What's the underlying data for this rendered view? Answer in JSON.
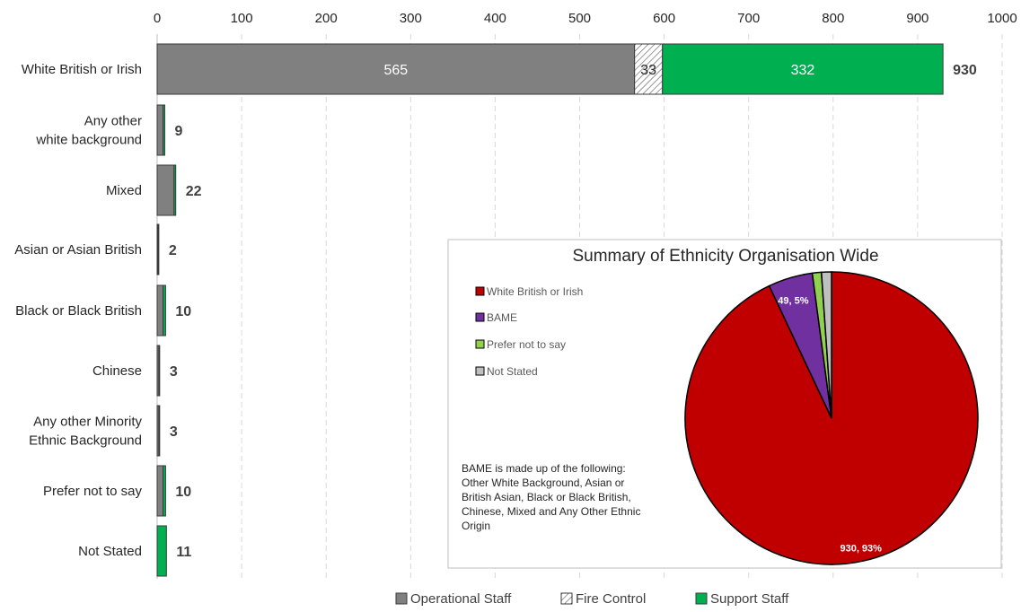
{
  "chart_data": [
    {
      "type": "bar",
      "orientation": "horizontal",
      "stacked": true,
      "categories": [
        "White British or Irish",
        "Any other white background",
        "Mixed",
        "Asian or Asian British",
        "Black or Black British",
        "Chinese",
        "Any other Minority Ethnic Background",
        "Prefer not to say",
        "Not Stated"
      ],
      "category_lines": [
        [
          "White British or Irish"
        ],
        [
          "Any other",
          "white background"
        ],
        [
          "Mixed"
        ],
        [
          "Asian or Asian British"
        ],
        [
          "Black or Black British"
        ],
        [
          "Chinese"
        ],
        [
          "Any other Minority",
          "Ethnic Background"
        ],
        [
          "Prefer not to say"
        ],
        [
          "Not Stated"
        ]
      ],
      "series": [
        {
          "name": "Operational Staff",
          "color": "#808080",
          "values": [
            565,
            7,
            20,
            1,
            7,
            2,
            2,
            7,
            0
          ]
        },
        {
          "name": "Fire Control",
          "color": "#ffffff",
          "pattern": "diagonal-hatch",
          "values": [
            33,
            0,
            0,
            0,
            0,
            0,
            0,
            0,
            0
          ]
        },
        {
          "name": "Support Staff",
          "color": "#00b050",
          "values": [
            332,
            2,
            2,
            1,
            3,
            1,
            1,
            3,
            11
          ]
        }
      ],
      "segment_labels": {
        "White British or Irish": [
          "565",
          "33",
          "332"
        ]
      },
      "totals": [
        "930",
        "9",
        "22",
        "2",
        "10",
        "3",
        "3",
        "10",
        "11"
      ],
      "xlim": [
        0,
        1000
      ],
      "xticks": [
        "0",
        "100",
        "200",
        "300",
        "400",
        "500",
        "600",
        "700",
        "800",
        "900",
        "1000"
      ],
      "axis_position": "top",
      "grid": "vertical dashed",
      "legend_position": "bottom"
    },
    {
      "type": "pie",
      "title": "Summary of Ethnicity Organisation Wide",
      "slices": [
        {
          "name": "White British or Irish",
          "value": 930,
          "color": "#c00000",
          "label": "930, 93%"
        },
        {
          "name": "BAME",
          "value": 49,
          "color": "#7030a0",
          "label": "49, 5%"
        },
        {
          "name": "Prefer not to say",
          "value": 10,
          "color": "#92d050",
          "label": ""
        },
        {
          "name": "Not Stated",
          "value": 11,
          "color": "#bfbfbf",
          "label": ""
        }
      ],
      "legend_position": "left",
      "note_lines": [
        "BAME is made up of the following:",
        "Other White Background, Asian or",
        "British Asian, Black or Black British,",
        "Chinese, Mixed and Any Other Ethnic",
        "Origin"
      ]
    }
  ]
}
